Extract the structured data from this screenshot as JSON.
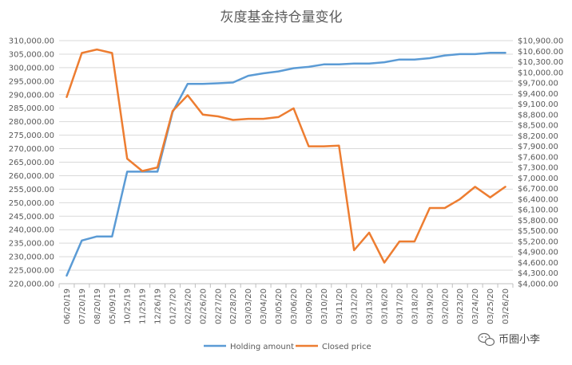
{
  "chart_data": {
    "type": "line",
    "title": "灰度基金持仓量变化",
    "categories": [
      "06/20/19",
      "07/20/19",
      "08/20/19",
      "05/09/19",
      "10/25/19",
      "11/25/19",
      "12/26/19",
      "01/27/20",
      "02/25/20",
      "02/26/20",
      "02/27/20",
      "02/28/20",
      "03/03/20",
      "03/04/20",
      "03/05/20",
      "03/06/20",
      "03/09/20",
      "03/10/20",
      "03/11/20",
      "03/12/20",
      "03/13/20",
      "03/16/20",
      "03/17/20",
      "03/18/20",
      "03/19/20",
      "03/20/20",
      "03/23/20",
      "03/24/20",
      "03/25/20",
      "03/26/20"
    ],
    "y_left": {
      "ticks": [
        "220,000.00",
        "225,000.00",
        "230,000.00",
        "235,000.00",
        "240,000.00",
        "245,000.00",
        "250,000.00",
        "255,000.00",
        "260,000.00",
        "265,000.00",
        "270,000.00",
        "275,000.00",
        "280,000.00",
        "285,000.00",
        "290,000.00",
        "295,000.00",
        "300,000.00",
        "305,000.00",
        "310,000.00"
      ],
      "ylim": [
        220000,
        310000
      ]
    },
    "y_right": {
      "ticks": [
        "$4,000.00",
        "$4,300.00",
        "$4,600.00",
        "$4,900.00",
        "$5,200.00",
        "$5,500.00",
        "$5,800.00",
        "$6,100.00",
        "$6,400.00",
        "$6,700.00",
        "$7,000.00",
        "$7,300.00",
        "$7,600.00",
        "$7,900.00",
        "$8,200.00",
        "$8,500.00",
        "$8,800.00",
        "$9,100.00",
        "$9,400.00",
        "$9,700.00",
        "$10,000.00",
        "$10,300.00",
        "$10,600.00",
        "$10,900.00"
      ],
      "ylim": [
        4000,
        10900
      ]
    },
    "series": [
      {
        "name": "Holding amount",
        "axis": "left",
        "color": "#5b9bd5",
        "values": [
          223000,
          236000,
          237500,
          237500,
          261500,
          261500,
          261500,
          283500,
          294000,
          294000,
          294200,
          294500,
          297000,
          297900,
          298600,
          299800,
          300300,
          301200,
          301200,
          301500,
          301500,
          302000,
          303000,
          303000,
          303500,
          304500,
          305000,
          305000,
          305500,
          305500
        ]
      },
      {
        "name": "Closed price",
        "axis": "right",
        "color": "#ed7d31",
        "values": [
          9300,
          10550,
          10650,
          10550,
          7550,
          7200,
          7300,
          8900,
          9350,
          8800,
          8750,
          8650,
          8680,
          8680,
          8730,
          8980,
          7900,
          7900,
          7920,
          4950,
          5450,
          4600,
          5200,
          5200,
          6150,
          6150,
          6400,
          6750,
          6450,
          6750
        ]
      }
    ],
    "legend_position": "bottom",
    "grid": "horizontal"
  },
  "watermark": {
    "text": "币圈小李",
    "icon": "wechat-icon"
  }
}
